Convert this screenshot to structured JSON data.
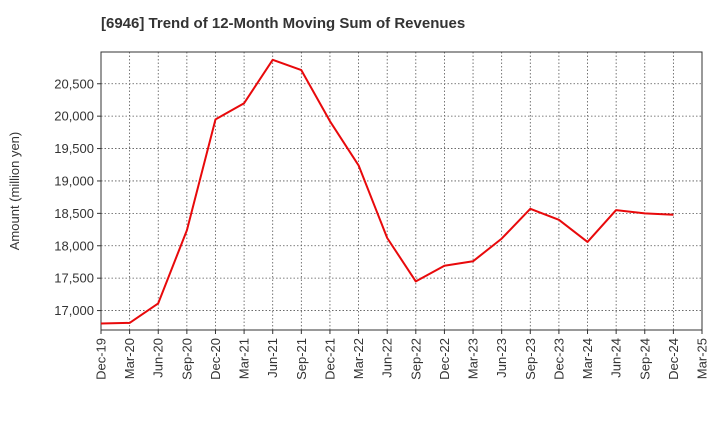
{
  "chart_data": {
    "type": "line",
    "title": "[6946]  Trend of 12-Month Moving Sum of Revenues",
    "ylabel": "Amount (million yen)",
    "xlabel": "",
    "ylim": [
      16700,
      20990
    ],
    "yticks": [
      17000,
      17500,
      18000,
      18500,
      19000,
      19500,
      20000,
      20500
    ],
    "ytick_labels": [
      "17,000",
      "17,500",
      "18,000",
      "18,500",
      "19,000",
      "19,500",
      "20,000",
      "20,500"
    ],
    "x_tick_labels": [
      "Dec-19",
      "Mar-20",
      "Jun-20",
      "Sep-20",
      "Dec-20",
      "Mar-21",
      "Jun-21",
      "Sep-21",
      "Dec-21",
      "Mar-22",
      "Jun-22",
      "Sep-22",
      "Dec-22",
      "Mar-23",
      "Jun-23",
      "Sep-23",
      "Dec-23",
      "Mar-24",
      "Jun-24",
      "Sep-24",
      "Dec-24",
      "Mar-25"
    ],
    "grid": true,
    "series": [
      {
        "color": "#e8090b",
        "x": [
          "Dec-19",
          "Mar-20",
          "Jun-20",
          "Sep-20",
          "Dec-20",
          "Mar-21",
          "Jun-21",
          "Sep-21",
          "Dec-21",
          "Mar-22",
          "Jun-22",
          "Sep-22",
          "Dec-22",
          "Mar-23",
          "Jun-23",
          "Sep-23",
          "Dec-23",
          "Mar-24",
          "Jun-24",
          "Sep-24",
          "Dec-24"
        ],
        "values": [
          16800,
          16810,
          17110,
          18240,
          19950,
          20200,
          20870,
          20710,
          19920,
          19240,
          18120,
          17450,
          17690,
          17760,
          18110,
          18570,
          18400,
          18060,
          18550,
          18500,
          18480
        ]
      }
    ]
  }
}
